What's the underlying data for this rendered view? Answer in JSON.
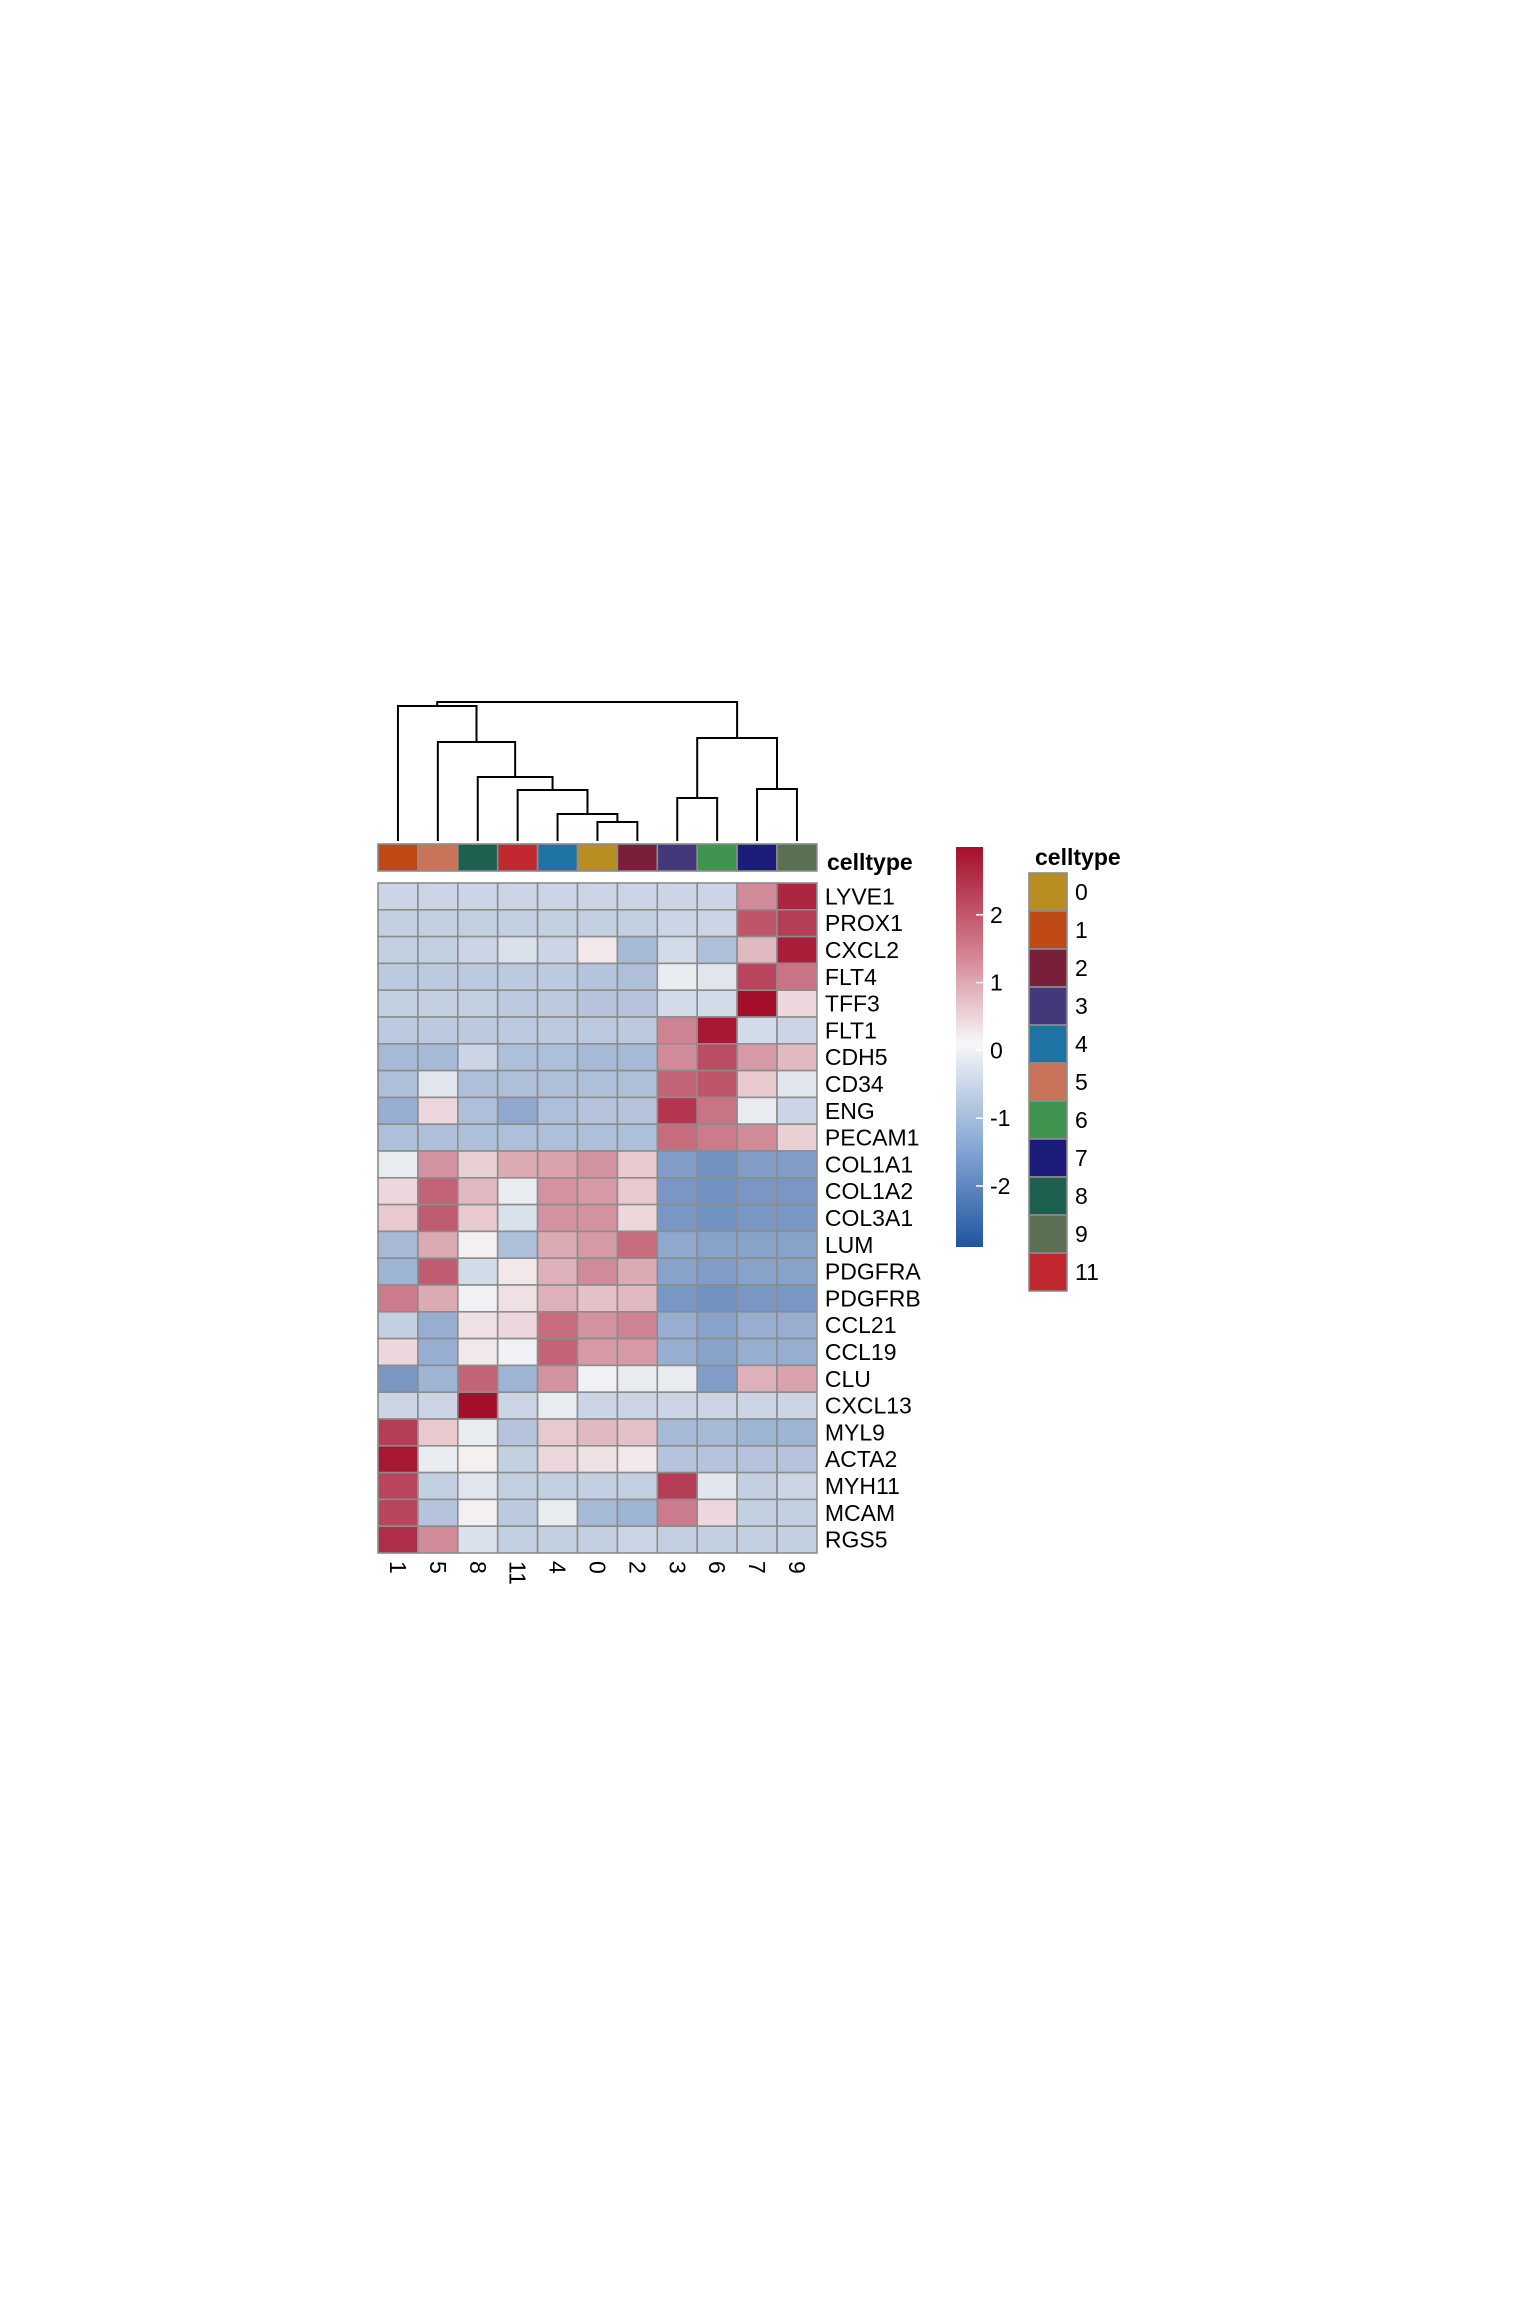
{
  "chart_data": {
    "type": "heatmap",
    "column_annotation_title": "celltype",
    "columns": [
      "1",
      "5",
      "8",
      "11",
      "4",
      "0",
      "2",
      "3",
      "6",
      "7",
      "9"
    ],
    "rows": [
      "LYVE1",
      "PROX1",
      "CXCL2",
      "FLT4",
      "TFF3",
      "FLT1",
      "CDH5",
      "CD34",
      "ENG",
      "PECAM1",
      "COL1A1",
      "COL1A2",
      "COL3A1",
      "LUM",
      "PDGFRA",
      "PDGFRB",
      "CCL21",
      "CCL19",
      "CLU",
      "CXCL13",
      "MYL9",
      "ACTA2",
      "MYH11",
      "MCAM",
      "RGS5"
    ],
    "values": [
      [
        -0.6,
        -0.6,
        -0.6,
        -0.6,
        -0.6,
        -0.6,
        -0.6,
        -0.6,
        -0.6,
        1.4,
        2.7
      ],
      [
        -0.7,
        -0.7,
        -0.7,
        -0.7,
        -0.7,
        -0.7,
        -0.7,
        -0.6,
        -0.6,
        2.1,
        2.4
      ],
      [
        -0.7,
        -0.7,
        -0.6,
        -0.4,
        -0.6,
        0.2,
        -1.1,
        -0.5,
        -1.0,
        0.8,
        2.8
      ],
      [
        -0.8,
        -0.8,
        -0.8,
        -0.8,
        -0.8,
        -0.9,
        -1.0,
        -0.2,
        -0.3,
        2.3,
        1.7
      ],
      [
        -0.7,
        -0.7,
        -0.7,
        -0.8,
        -0.8,
        -0.9,
        -0.9,
        -0.5,
        -0.5,
        3.0,
        0.4
      ],
      [
        -0.8,
        -0.8,
        -0.8,
        -0.8,
        -0.8,
        -0.8,
        -0.8,
        1.5,
        2.9,
        -0.5,
        -0.6
      ],
      [
        -1.1,
        -1.1,
        -0.6,
        -1.0,
        -1.0,
        -1.1,
        -1.1,
        1.4,
        2.2,
        1.2,
        0.8
      ],
      [
        -1.0,
        -0.3,
        -1.0,
        -1.0,
        -1.0,
        -1.0,
        -1.0,
        1.9,
        2.1,
        0.6,
        -0.3
      ],
      [
        -1.3,
        0.4,
        -1.0,
        -1.4,
        -1.0,
        -0.9,
        -0.9,
        2.5,
        1.7,
        -0.2,
        -0.6
      ],
      [
        -1.0,
        -1.0,
        -1.0,
        -1.0,
        -1.0,
        -1.0,
        -1.0,
        1.8,
        1.6,
        1.4,
        0.5
      ],
      [
        -0.2,
        1.3,
        0.5,
        1.0,
        1.1,
        1.3,
        0.6,
        -1.6,
        -1.8,
        -1.6,
        -1.6
      ],
      [
        0.4,
        1.9,
        0.8,
        -0.2,
        1.3,
        1.2,
        0.6,
        -1.7,
        -1.8,
        -1.7,
        -1.7
      ],
      [
        0.6,
        2.0,
        0.6,
        -0.4,
        1.3,
        1.3,
        0.4,
        -1.7,
        -1.8,
        -1.7,
        -1.7
      ],
      [
        -1.1,
        1.0,
        0.1,
        -1.0,
        1.0,
        1.2,
        1.8,
        -1.4,
        -1.5,
        -1.5,
        -1.5
      ],
      [
        -1.2,
        2.0,
        -0.5,
        0.2,
        0.9,
        1.4,
        1.0,
        -1.5,
        -1.6,
        -1.5,
        -1.5
      ],
      [
        1.6,
        1.0,
        -0.1,
        0.3,
        0.9,
        0.7,
        0.8,
        -1.7,
        -1.8,
        -1.7,
        -1.7
      ],
      [
        -0.7,
        -1.3,
        0.3,
        0.4,
        1.8,
        1.3,
        1.5,
        -1.3,
        -1.5,
        -1.3,
        -1.3
      ],
      [
        0.4,
        -1.3,
        0.2,
        -0.1,
        1.9,
        1.2,
        1.2,
        -1.3,
        -1.5,
        -1.3,
        -1.3
      ],
      [
        -1.7,
        -1.2,
        1.9,
        -1.2,
        1.3,
        -0.1,
        -0.2,
        -0.2,
        -1.6,
        0.9,
        1.1
      ],
      [
        -0.6,
        -0.6,
        3.0,
        -0.6,
        -0.2,
        -0.6,
        -0.6,
        -0.6,
        -0.6,
        -0.6,
        -0.6
      ],
      [
        2.4,
        0.6,
        -0.2,
        -0.9,
        0.6,
        0.8,
        0.7,
        -1.1,
        -1.1,
        -1.2,
        -1.2
      ],
      [
        2.9,
        -0.2,
        0.1,
        -0.7,
        0.4,
        0.3,
        0.2,
        -0.9,
        -0.9,
        -0.9,
        -0.9
      ],
      [
        2.3,
        -0.7,
        -0.3,
        -0.7,
        -0.7,
        -0.7,
        -0.7,
        2.4,
        -0.3,
        -0.7,
        -0.6
      ],
      [
        2.3,
        -0.9,
        0.1,
        -0.8,
        -0.2,
        -1.1,
        -1.2,
        1.6,
        0.4,
        -0.7,
        -0.7
      ],
      [
        2.6,
        1.4,
        -0.4,
        -0.7,
        -0.7,
        -0.7,
        -0.6,
        -0.7,
        -0.7,
        -0.7,
        -0.7
      ]
    ],
    "colorbar": {
      "ticks": [
        2,
        1,
        0,
        -1,
        -2
      ],
      "vmin": -2.9,
      "vmax": 3.0,
      "low_color": "#2154a0",
      "mid_color": "#f7f7f7",
      "high_color": "#a50f2c"
    },
    "celltype_colors": {
      "0": "#b88d22",
      "1": "#c04a16",
      "2": "#7a1f3a",
      "3": "#433879",
      "4": "#1f74a5",
      "5": "#c8735a",
      "6": "#3f9450",
      "7": "#1c1c7a",
      "8": "#1f5f4f",
      "9": "#5b6f55",
      "11": "#c2282f"
    },
    "legend": {
      "title": "celltype",
      "entries": [
        "0",
        "1",
        "2",
        "3",
        "4",
        "5",
        "6",
        "7",
        "8",
        "9",
        "11"
      ]
    }
  }
}
